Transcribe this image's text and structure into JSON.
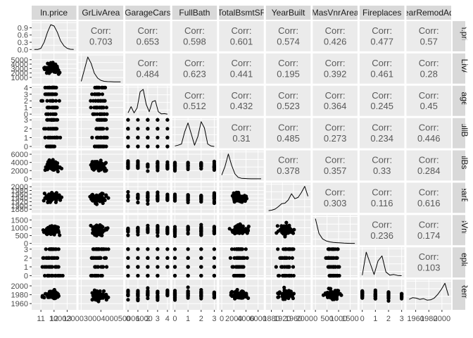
{
  "chart_data": {
    "type": "scatter",
    "subtype": "pairs-plot-matrix",
    "variables": [
      "ln.price",
      "GrLivArea",
      "GarageCars",
      "FullBath",
      "TotalBsmtSF",
      "YearBuilt",
      "MasVnrArea",
      "Fireplaces",
      "YearRemodAdd"
    ],
    "corr_label": "Corr:",
    "correlations": [
      [
        null,
        "0.703",
        "0.653",
        "0.598",
        "0.601",
        "0.574",
        "0.426",
        "0.477",
        "0.57"
      ],
      [
        null,
        null,
        "0.484",
        "0.623",
        "0.441",
        "0.195",
        "0.392",
        "0.461",
        "0.28"
      ],
      [
        null,
        null,
        null,
        "0.512",
        "0.432",
        "0.523",
        "0.364",
        "0.245",
        "0.45"
      ],
      [
        null,
        null,
        null,
        null,
        "0.31",
        "0.485",
        "0.273",
        "0.234",
        "0.446"
      ],
      [
        null,
        null,
        null,
        null,
        null,
        "0.378",
        "0.357",
        "0.33",
        "0.284"
      ],
      [
        null,
        null,
        null,
        null,
        null,
        null,
        "0.303",
        "0.116",
        "0.616"
      ],
      [
        null,
        null,
        null,
        null,
        null,
        null,
        null,
        "0.236",
        "0.174"
      ],
      [
        null,
        null,
        null,
        null,
        null,
        null,
        null,
        null,
        "0.103"
      ]
    ],
    "diag_ranges": [
      [
        10.5,
        13.5
      ],
      [
        0,
        6000
      ],
      [
        0,
        4
      ],
      [
        0,
        3
      ],
      [
        0,
        6500
      ],
      [
        1870,
        2012
      ],
      [
        0,
        1700
      ],
      [
        0,
        3
      ],
      [
        1950,
        2010
      ]
    ],
    "x_tick_labels": [
      [
        "11",
        "12",
        "13"
      ],
      [
        "100020003000400050006000"
      ],
      [
        "0",
        "1",
        "2",
        "3",
        "4"
      ],
      [
        "0",
        "1",
        "2",
        "3"
      ],
      [
        "0",
        "2000",
        "4000",
        "6000"
      ],
      [
        "1880",
        "1920",
        "1960",
        "2000"
      ],
      [
        "0",
        "500",
        "1000",
        "1500"
      ],
      [
        "0",
        "1",
        "2",
        "3"
      ],
      [
        "1960",
        "1980",
        "2000"
      ]
    ],
    "x_tick_values": [
      [
        11,
        12,
        13
      ],
      [
        0
      ],
      [
        0,
        1,
        2,
        3,
        4
      ],
      [
        0,
        1,
        2,
        3
      ],
      [
        0,
        2000,
        4000,
        6000
      ],
      [
        1880,
        1920,
        1960,
        2000
      ],
      [
        0,
        500,
        1000,
        1500
      ],
      [
        0,
        1,
        2,
        3
      ],
      [
        1960,
        1980,
        2000
      ]
    ],
    "y_axes": [
      {
        "labels": [
          "0.0",
          "0.3",
          "0.6",
          "0.9"
        ],
        "values": [
          0,
          0.3,
          0.6,
          0.9
        ],
        "range": [
          0,
          1.1
        ]
      },
      {
        "labels": [
          "1000",
          "2000",
          "3000",
          "4000",
          "5000"
        ],
        "values": [
          1000,
          2000,
          3000,
          4000,
          5000
        ],
        "range": [
          0,
          6000
        ]
      },
      {
        "labels": [
          "0",
          "1",
          "2",
          "3",
          "4"
        ],
        "values": [
          0,
          1,
          2,
          3,
          4
        ],
        "range": [
          0,
          4
        ]
      },
      {
        "labels": [
          "0",
          "1",
          "2",
          "3"
        ],
        "values": [
          0,
          1,
          2,
          3
        ],
        "range": [
          0,
          3
        ]
      },
      {
        "labels": [
          "0",
          "2000",
          "4000",
          "6000"
        ],
        "values": [
          0,
          2000,
          4000,
          6000
        ],
        "range": [
          0,
          6500
        ]
      },
      {
        "labels": [
          "1880",
          "1900",
          "1920",
          "1940",
          "1960",
          "1980",
          "2000"
        ],
        "values": [
          1880,
          1900,
          1920,
          1940,
          1960,
          1980,
          2000
        ],
        "range": [
          1870,
          2012
        ]
      },
      {
        "labels": [
          "0",
          "500",
          "1000",
          "1500"
        ],
        "values": [
          0,
          500,
          1000,
          1500
        ],
        "range": [
          0,
          1700
        ]
      },
      {
        "labels": [
          "0",
          "1",
          "2",
          "3"
        ],
        "values": [
          0,
          1,
          2,
          3
        ],
        "range": [
          0,
          3
        ]
      },
      {
        "labels": [
          "1960",
          "1980",
          "2000"
        ],
        "values": [
          1960,
          1980,
          2000
        ],
        "range": [
          1950,
          2010
        ]
      }
    ],
    "diag_density": [
      [
        0,
        0,
        0.05,
        0.3,
        0.7,
        1.0,
        0.95,
        0.7,
        0.35,
        0.15,
        0.05,
        0.01,
        0
      ],
      [
        0.02,
        0.5,
        1.0,
        0.75,
        0.35,
        0.15,
        0.06,
        0.02,
        0.01,
        0.005,
        0,
        0,
        0
      ],
      [
        0.05,
        0.3,
        0.05,
        0.25,
        0.9,
        1.0,
        0.4,
        0.1,
        0.5,
        0.55,
        0.1,
        0.01,
        0.02,
        0
      ],
      [
        0.02,
        0.05,
        0.1,
        0.6,
        0.95,
        0.5,
        0.05,
        0.4,
        1.0,
        0.75,
        0.1,
        0.02,
        0
      ],
      [
        0.15,
        0.5,
        1.0,
        0.55,
        0.2,
        0.06,
        0.02,
        0.01,
        0.005,
        0,
        0,
        0,
        0
      ],
      [
        0.02,
        0.04,
        0.08,
        0.18,
        0.3,
        0.32,
        0.45,
        0.7,
        0.5,
        0.55,
        0.75,
        1.0,
        0.6
      ],
      [
        1.0,
        0.4,
        0.18,
        0.1,
        0.06,
        0.04,
        0.03,
        0.02,
        0.01,
        0.005,
        0,
        0
      ],
      [
        0.02,
        0.95,
        0.5,
        0.05,
        0.6,
        0.8,
        0.15,
        0.02,
        0.05,
        0.01,
        0
      ],
      [
        0.35,
        0.42,
        0.4,
        0.35,
        0.38,
        0.32,
        0.33,
        0.4,
        0.55,
        0.75,
        1.0,
        0.5
      ]
    ],
    "strip_titles": {
      "top": [
        "ln.price",
        "GrLivArea",
        "GarageCars",
        "FullBath",
        "TotalBsmtSF",
        "YearBuilt",
        "MasVnrArea",
        "Fireplaces",
        "YearRemodAdd"
      ],
      "right": [
        "ln.price",
        "GrLivArea",
        "GarageCars",
        "FullBath",
        "TotalBsmtSF",
        "YearBuilt",
        "MasVnrArea",
        "Fireplaces",
        "YearRemodAdd"
      ]
    },
    "colors": {
      "strip_bg": "#d9d9d9",
      "panel_bg": "#ebebeb",
      "grid": "#ffffff",
      "point": "#000000",
      "corr_text": "#595959",
      "tick_text": "#4d4d4d",
      "strip_text": "#1a1a1a"
    }
  }
}
